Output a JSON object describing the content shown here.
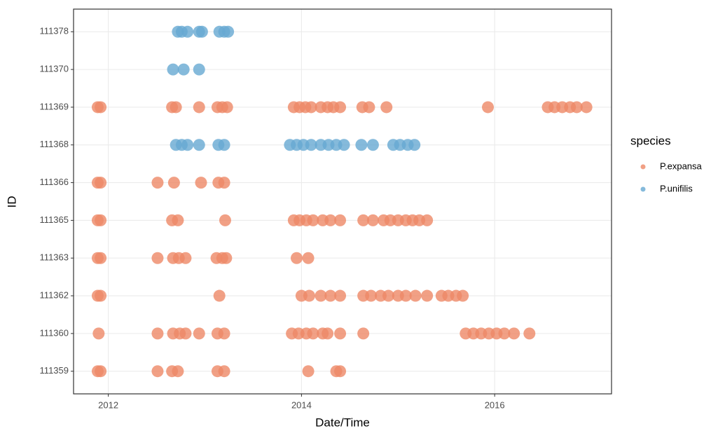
{
  "chart_data": {
    "type": "scatter",
    "x_label": "Date/Time",
    "y_label": "ID",
    "legend_title": "species",
    "legend": "right",
    "grid": true,
    "xlim": [
      2011.64,
      2017.21
    ],
    "xticks": [
      2012,
      2014,
      2016
    ],
    "categories": [
      "111359",
      "111360",
      "111362",
      "111363",
      "111365",
      "111366",
      "111368",
      "111369",
      "111370",
      "111378"
    ],
    "series": [
      {
        "name": "P.expansa",
        "color": "#ee8866",
        "x": [
          2011.89,
          2011.92,
          2012.66,
          2012.7,
          2012.94,
          2013.13,
          2013.18,
          2013.23,
          2013.92,
          2013.98,
          2014.04,
          2014.1,
          2014.2,
          2014.27,
          2014.33,
          2014.4,
          2014.63,
          2014.7,
          2014.88,
          2015.93,
          2016.55,
          2016.62,
          2016.7,
          2016.78,
          2016.85,
          2016.95,
          2011.89,
          2011.92,
          2012.51,
          2012.68,
          2012.96,
          2013.14,
          2013.2,
          2011.89,
          2011.92,
          2012.66,
          2012.72,
          2013.21,
          2013.92,
          2013.98,
          2014.05,
          2014.12,
          2014.22,
          2014.3,
          2014.4,
          2014.64,
          2014.74,
          2014.85,
          2014.92,
          2015.0,
          2015.08,
          2015.15,
          2015.22,
          2015.3,
          2011.89,
          2011.92,
          2012.51,
          2012.67,
          2012.73,
          2012.8,
          2013.12,
          2013.18,
          2013.22,
          2013.95,
          2014.07,
          2011.89,
          2011.92,
          2013.15,
          2014.0,
          2014.08,
          2014.2,
          2014.3,
          2014.4,
          2014.64,
          2014.72,
          2014.82,
          2014.9,
          2015.0,
          2015.08,
          2015.18,
          2015.3,
          2015.45,
          2015.52,
          2015.6,
          2015.67,
          2011.9,
          2012.51,
          2012.67,
          2012.74,
          2012.8,
          2012.94,
          2013.13,
          2013.2,
          2013.9,
          2013.97,
          2014.05,
          2014.12,
          2014.22,
          2014.27,
          2014.4,
          2014.64,
          2015.7,
          2015.78,
          2015.86,
          2015.94,
          2016.02,
          2016.1,
          2016.2,
          2016.36,
          2011.89,
          2011.92,
          2012.51,
          2012.66,
          2012.72,
          2013.13,
          2013.2,
          2014.07,
          2014.36,
          2014.4
        ],
        "values": [
          "111369",
          "111369",
          "111369",
          "111369",
          "111369",
          "111369",
          "111369",
          "111369",
          "111369",
          "111369",
          "111369",
          "111369",
          "111369",
          "111369",
          "111369",
          "111369",
          "111369",
          "111369",
          "111369",
          "111369",
          "111369",
          "111369",
          "111369",
          "111369",
          "111369",
          "111369",
          "111366",
          "111366",
          "111366",
          "111366",
          "111366",
          "111366",
          "111366",
          "111365",
          "111365",
          "111365",
          "111365",
          "111365",
          "111365",
          "111365",
          "111365",
          "111365",
          "111365",
          "111365",
          "111365",
          "111365",
          "111365",
          "111365",
          "111365",
          "111365",
          "111365",
          "111365",
          "111365",
          "111365",
          "111363",
          "111363",
          "111363",
          "111363",
          "111363",
          "111363",
          "111363",
          "111363",
          "111363",
          "111363",
          "111363",
          "111362",
          "111362",
          "111362",
          "111362",
          "111362",
          "111362",
          "111362",
          "111362",
          "111362",
          "111362",
          "111362",
          "111362",
          "111362",
          "111362",
          "111362",
          "111362",
          "111362",
          "111362",
          "111362",
          "111362",
          "111360",
          "111360",
          "111360",
          "111360",
          "111360",
          "111360",
          "111360",
          "111360",
          "111360",
          "111360",
          "111360",
          "111360",
          "111360",
          "111360",
          "111360",
          "111360",
          "111360",
          "111360",
          "111360",
          "111360",
          "111360",
          "111360",
          "111360",
          "111360",
          "111359",
          "111359",
          "111359",
          "111359",
          "111359",
          "111359",
          "111359",
          "111359",
          "111359",
          "111359"
        ]
      },
      {
        "name": "P.unifilis",
        "color": "#67a9d2",
        "x": [
          2012.72,
          2012.76,
          2012.82,
          2012.94,
          2012.97,
          2013.15,
          2013.2,
          2013.24,
          2012.67,
          2012.78,
          2012.94,
          2012.7,
          2012.76,
          2012.82,
          2012.94,
          2013.14,
          2013.2,
          2013.88,
          2013.95,
          2014.02,
          2014.1,
          2014.2,
          2014.28,
          2014.36,
          2014.44,
          2014.62,
          2014.74,
          2014.95,
          2015.02,
          2015.1,
          2015.17
        ],
        "values": [
          "111378",
          "111378",
          "111378",
          "111378",
          "111378",
          "111378",
          "111378",
          "111378",
          "111370",
          "111370",
          "111370",
          "111368",
          "111368",
          "111368",
          "111368",
          "111368",
          "111368",
          "111368",
          "111368",
          "111368",
          "111368",
          "111368",
          "111368",
          "111368",
          "111368",
          "111368",
          "111368",
          "111368",
          "111368",
          "111368",
          "111368"
        ]
      }
    ]
  }
}
